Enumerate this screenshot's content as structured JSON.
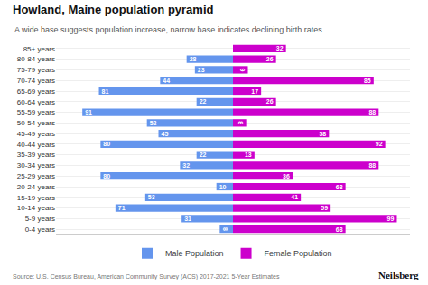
{
  "chart_data": {
    "type": "bar",
    "orientation": "horizontal",
    "title": "Howland, Maine population pyramid",
    "subtitle": "A wide base suggests population increase, narrow base indicates declining birth rates.",
    "annotations": [
      "Source: U.S. Census Bureau, American Community Survey (ACS) 2017-2021 5-Year Estimates",
      "Neilsberg"
    ],
    "categories": [
      "0-4 years",
      "5-9 years",
      "10-14 years",
      "15-19 years",
      "20-24 years",
      "25-29 years",
      "30-34 years",
      "35-39 years",
      "40-44 years",
      "45-49 years",
      "50-54 years",
      "55-59 years",
      "60-64 years",
      "65-69 years",
      "70-74 years",
      "75-79 years",
      "80-84 years",
      "85+ years"
    ],
    "series": [
      {
        "name": "Male Population",
        "color": "#6495ED",
        "values": [
          8,
          31,
          71,
          53,
          10,
          80,
          32,
          22,
          80,
          45,
          52,
          91,
          22,
          81,
          44,
          23,
          28,
          0
        ]
      },
      {
        "name": "Female Population",
        "color": "#CC00CC",
        "values": [
          68,
          99,
          59,
          41,
          68,
          36,
          88,
          13,
          92,
          58,
          8,
          88,
          26,
          17,
          85,
          9,
          26,
          32
        ]
      }
    ],
    "xlim": [
      0,
      106.92
    ],
    "tick_labels": "y",
    "data_labels": true,
    "grid": true,
    "legend": "bottom"
  }
}
